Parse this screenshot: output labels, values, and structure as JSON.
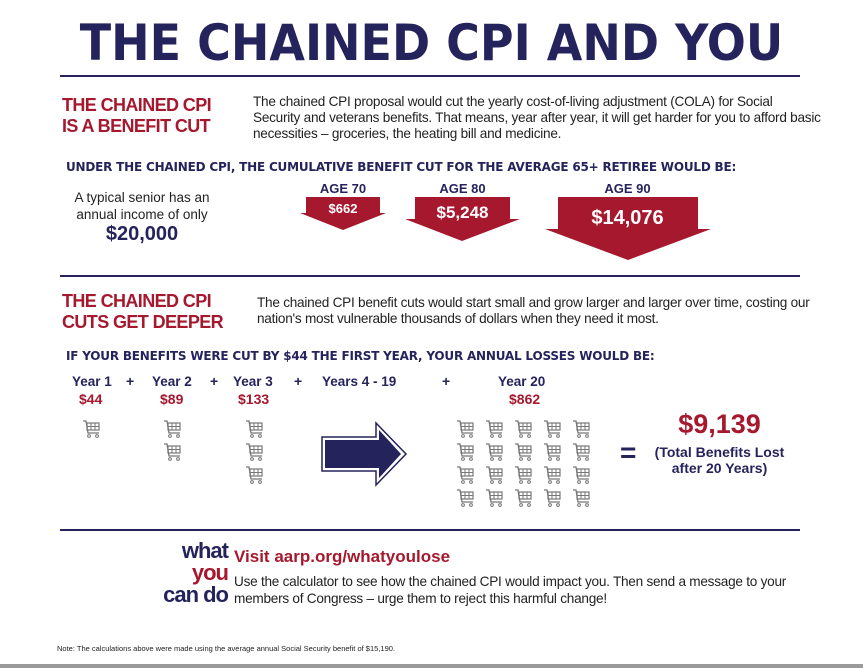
{
  "title": "THE CHAINED CPI AND YOU",
  "section1": {
    "heading_line1": "THE CHAINED CPI",
    "heading_line2": "IS A BENEFIT CUT",
    "paragraph": "The chained CPI proposal would cut the yearly cost-of-living adjustment (COLA) for Social Security and veterans benefits. That means, year after year, it will get harder for you to afford basic necessities – groceries, the heating bill and medicine.",
    "subheading": "UNDER THE CHAINED CPI, THE CUMULATIVE BENEFIT CUT FOR THE AVERAGE 65+ RETIREE WOULD BE:",
    "income_text": "A typical senior has an annual income of only",
    "income_value": "$20,000",
    "cuts": [
      {
        "label": "AGE 70",
        "value": "$662"
      },
      {
        "label": "AGE 80",
        "value": "$5,248"
      },
      {
        "label": "AGE 90",
        "value": "$14,076"
      }
    ]
  },
  "section2": {
    "heading_line1": "THE CHAINED CPI",
    "heading_line2": "CUTS GET DEEPER",
    "paragraph": "The chained CPI benefit cuts would start small and grow larger and larger over time, costing our nation's most vulnerable thousands of dollars when they need it most.",
    "subheading": "IF YOUR BENEFITS WERE CUT BY $44 THE FIRST YEAR, YOUR ANNUAL LOSSES WOULD BE:",
    "years": [
      {
        "label": "Year 1",
        "value": "$44",
        "carts": 1
      },
      {
        "label": "Year 2",
        "value": "$89",
        "carts": 2
      },
      {
        "label": "Year 3",
        "value": "$133",
        "carts": 3
      },
      {
        "label": "Years 4 - 19",
        "value": "",
        "carts": 0
      },
      {
        "label": "Year 20",
        "value": "$862",
        "carts": 20
      }
    ],
    "plus": "+",
    "equals": "=",
    "total_value": "$9,139",
    "total_label_line1": "(Total Benefits Lost",
    "total_label_line2": "after 20 Years)"
  },
  "cta": {
    "logo_line1": "what",
    "logo_line2": "you",
    "logo_line3": "can do",
    "link": "Visit aarp.org/whatyoulose",
    "text": "Use the calculator to see how the chained CPI would impact you. Then send a message to your members of Congress – urge them to reject this harmful change!"
  },
  "note": "Note: The calculations above were made using the average annual Social Security benefit of $15,190.",
  "colors": {
    "navy": "#25235c",
    "red": "#a5182e"
  },
  "icons": [
    "shopping-cart-icon",
    "right-arrow-icon",
    "down-arrow-icon"
  ]
}
